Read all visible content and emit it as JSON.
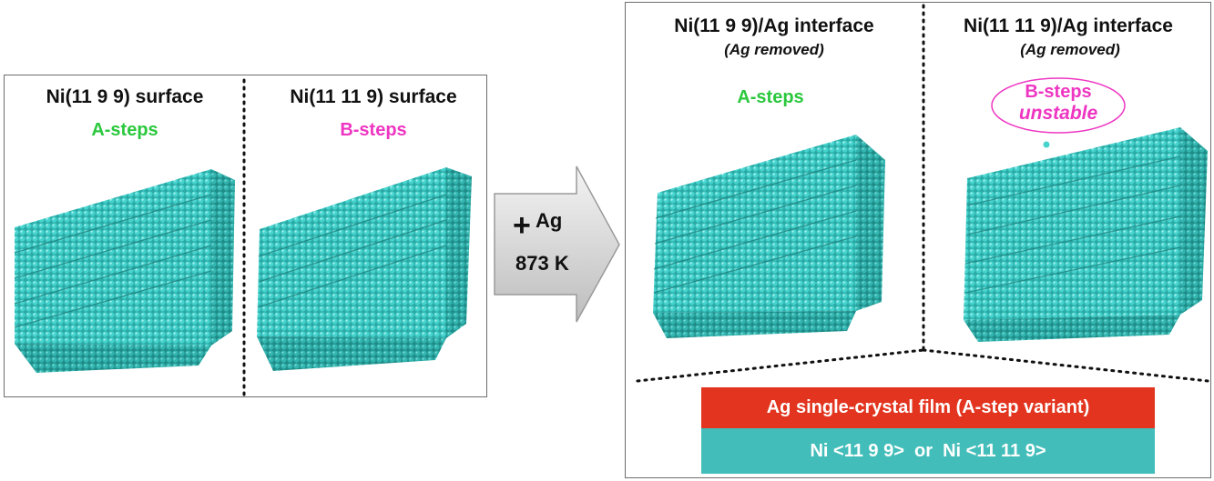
{
  "left_panel": {
    "surface_1": {
      "title": "Ni(11 9 9) surface",
      "step_label": "A-steps"
    },
    "surface_2": {
      "title": "Ni(11 11 9) surface",
      "step_label": "B-steps"
    }
  },
  "arrow": {
    "plus": "+",
    "element": "Ag",
    "temperature": "873 K"
  },
  "right_panel": {
    "interface_1": {
      "title": "Ni(11 9 9)/Ag interface",
      "note": "(Ag removed)",
      "step_label": "A-steps"
    },
    "interface_2": {
      "title": "Ni(11 11 9)/Ag interface",
      "note": "(Ag removed)",
      "step_label": "B-steps",
      "step_status": "unstable"
    }
  },
  "layers": {
    "ag_film": "Ag single-crystal film (A-step variant)",
    "ni_substrate": "Ni <11 9 9>  or  Ni <11 11 9>"
  },
  "colors": {
    "atoms": "#3cc9c4",
    "a_steps": "#2bc83e",
    "b_steps": "#ee36c2",
    "ag_layer": "#e2341e",
    "ni_layer": "#42bdb9"
  }
}
